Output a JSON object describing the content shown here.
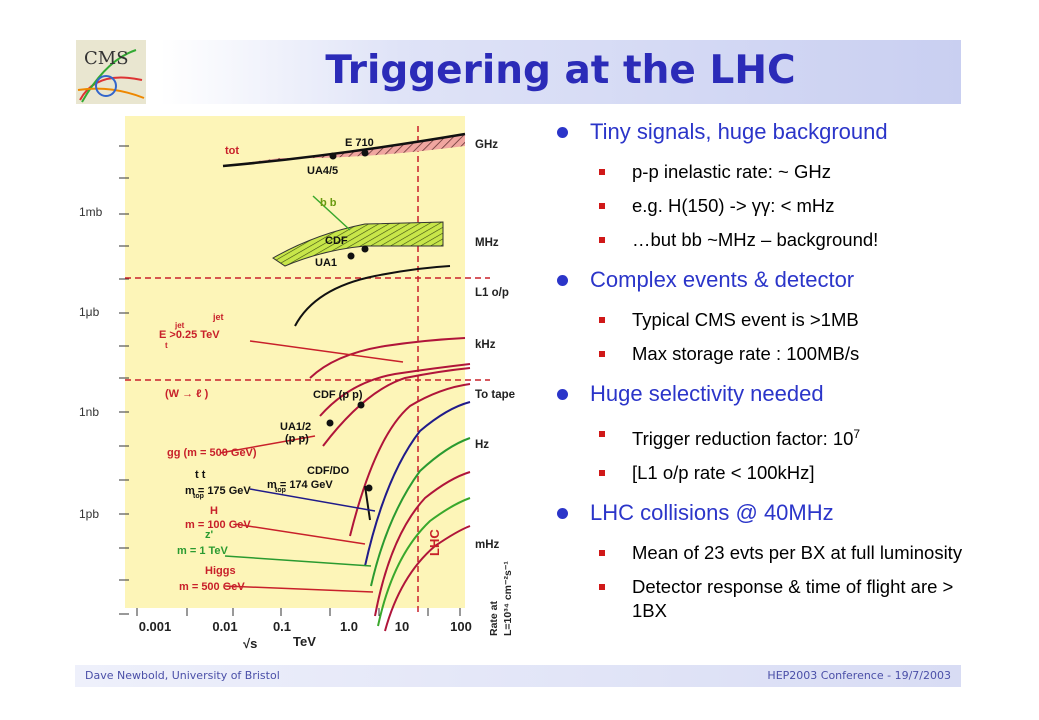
{
  "logo": {
    "text": "CMS"
  },
  "title": "Triggering at the LHC",
  "plot": {
    "y_labels": [
      "1mb",
      "1μb",
      "1nb",
      "1pb"
    ],
    "right_labels": [
      "GHz",
      "MHz",
      "L1 o/p",
      "kHz",
      "To tape",
      "Hz",
      "mHz"
    ],
    "x_ticks": [
      "0.001",
      "0.01",
      "0.1",
      "1.0",
      "10",
      "100"
    ],
    "x_label": "TeV",
    "sqrt_s": "√s",
    "lhc": "LHC",
    "rate_label_1": "Rate at",
    "rate_label_2": "L=10³⁴ cm⁻²s⁻¹",
    "annotations": {
      "tot": "tot",
      "e710": "E 710",
      "ua45": "UA4/5",
      "bb": "b b",
      "cdf": "CDF",
      "ua1": "UA1",
      "jet1": "jet",
      "jet2": "E  >0.25 TeV",
      "jet_t": "t",
      "jet_sup": "jet",
      "w": "(W → ℓ  )",
      "cdfpp": "CDF (p p)",
      "ua12": "UA1/2",
      "pp": "(p p)",
      "gg": "gg (m  = 500 GeV)",
      "tt": "t t",
      "mtop1": "m    = 175 GeV",
      "top1": "top",
      "cdfdo": "CDF/DO",
      "mtop2": "m    = 174 GeV",
      "top2": "top",
      "h": "H",
      "mh1": "m  = 100 GeV",
      "zp": "z'",
      "mz": "m   = 1 TeV",
      "higgs": "Higgs",
      "mh2": "m  = 500 GeV"
    }
  },
  "bullets": [
    {
      "text": "Tiny signals, huge background",
      "sub": [
        {
          "text": "p-p inelastic rate: ~ GHz"
        },
        {
          "text": "e.g. H(150) -> γγ: < mHz"
        },
        {
          "text": "…but bb ~MHz – background!"
        }
      ]
    },
    {
      "text": "Complex events & detector",
      "sub": [
        {
          "text": "Typical CMS event is >1MB"
        },
        {
          "text": "Max storage rate : 100MB/s"
        }
      ]
    },
    {
      "text": "Huge selectivity needed",
      "sub": [
        {
          "text": "Trigger reduction factor: 10",
          "sup": "7"
        },
        {
          "text": "[L1 o/p rate < 100kHz]"
        }
      ]
    },
    {
      "text": "LHC collisions @ 40MHz",
      "sub": [
        {
          "text": "Mean of 23 evts per BX at full luminosity"
        },
        {
          "text": "Detector response & time of flight are > 1BX"
        }
      ]
    }
  ],
  "footer": {
    "left": "Dave Newbold, University of Bristol",
    "right": "HEP2003 Conference - 19/7/2003"
  }
}
